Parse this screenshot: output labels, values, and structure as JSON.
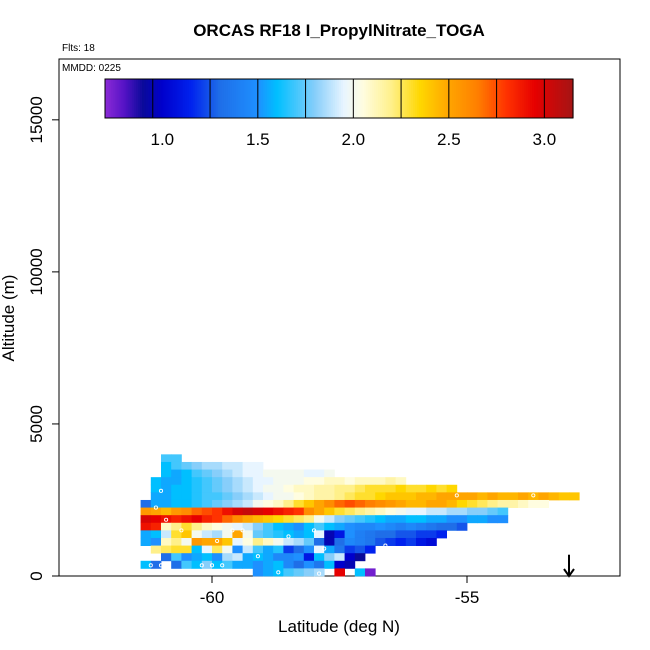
{
  "chart_data": {
    "type": "heatmap",
    "title": "ORCAS RF18 I_PropylNitrate_TOGA",
    "flights_note": "Flts: 18",
    "date_note": "MMDD: 0225",
    "xlabel": "Latitude (deg N)",
    "ylabel": "Altitude (m)",
    "xlim": [
      -63.0,
      -52.0
    ],
    "ylim": [
      0,
      17000
    ],
    "x_ticks": [
      -60,
      -55
    ],
    "y_ticks": [
      0,
      5000,
      10000,
      15000
    ],
    "colorbar": {
      "range": [
        0.7,
        3.15
      ],
      "ticks": [
        1.0,
        1.5,
        2.0,
        2.5,
        3.0
      ],
      "segment_boundaries": [
        0.7,
        0.95,
        1.25,
        1.5,
        1.75,
        2.0,
        2.25,
        2.5,
        2.75,
        3.0,
        3.15
      ],
      "stops": [
        {
          "value": 0.7,
          "color": "#8c2bd6"
        },
        {
          "value": 0.8,
          "color": "#5513c6"
        },
        {
          "value": 0.9,
          "color": "#0a0a9a"
        },
        {
          "value": 1.0,
          "color": "#0000cc"
        },
        {
          "value": 1.15,
          "color": "#0022ee"
        },
        {
          "value": 1.3,
          "color": "#1f6ee8"
        },
        {
          "value": 1.5,
          "color": "#1e90ff"
        },
        {
          "value": 1.6,
          "color": "#00bfff"
        },
        {
          "value": 1.8,
          "color": "#87cefa"
        },
        {
          "value": 1.95,
          "color": "#e8f5ff"
        },
        {
          "value": 2.05,
          "color": "#fffde0"
        },
        {
          "value": 2.2,
          "color": "#fff08a"
        },
        {
          "value": 2.35,
          "color": "#ffd700"
        },
        {
          "value": 2.5,
          "color": "#ffa500"
        },
        {
          "value": 2.65,
          "color": "#ff7f00"
        },
        {
          "value": 2.8,
          "color": "#ff3300"
        },
        {
          "value": 2.95,
          "color": "#e60000"
        },
        {
          "value": 3.15,
          "color": "#a51515"
        }
      ]
    },
    "cell_size": {
      "dlat": 0.2,
      "dalt": 250
    },
    "rows": [
      {
        "alt": 3875,
        "lat0": -61.0,
        "values": [
          1.7,
          1.7
        ]
      },
      {
        "alt": 3625,
        "lat0": -61.0,
        "values": [
          1.6,
          1.7,
          1.75,
          1.8,
          1.85,
          1.85,
          1.9,
          1.9,
          1.95,
          1.95
        ]
      },
      {
        "alt": 3375,
        "lat0": -61.0,
        "values": [
          1.6,
          1.55,
          1.6,
          1.7,
          1.75,
          1.8,
          1.85,
          1.9,
          1.95,
          1.95,
          2.0,
          2.0,
          2.0,
          2.0,
          1.95,
          1.95,
          2.0
        ]
      },
      {
        "alt": 3125,
        "lat0": -61.2,
        "values": [
          1.6,
          1.55,
          1.55,
          1.6,
          1.65,
          1.7,
          1.75,
          1.8,
          1.85,
          1.9,
          1.95,
          1.95,
          2.0,
          2.0,
          2.0,
          2.05,
          2.05,
          2.1,
          2.1,
          2.05,
          2.1,
          2.1,
          2.1,
          2.15,
          2.1
        ]
      },
      {
        "alt": 2875,
        "lat0": -61.2,
        "values": [
          1.6,
          1.55,
          1.6,
          1.6,
          1.65,
          1.7,
          1.75,
          1.8,
          1.85,
          1.9,
          1.95,
          2.0,
          2.0,
          2.05,
          2.1,
          2.1,
          2.15,
          2.15,
          2.2,
          2.2,
          2.25,
          2.3,
          2.3,
          2.3,
          2.35,
          2.3,
          2.3,
          2.35,
          2.3,
          2.35
        ]
      },
      {
        "alt": 2625,
        "lat0": -61.2,
        "values": [
          1.55,
          1.55,
          1.6,
          1.6,
          1.65,
          1.7,
          1.7,
          1.75,
          1.8,
          1.85,
          1.9,
          1.95,
          2.0,
          2.0,
          2.05,
          2.1,
          2.15,
          2.15,
          2.2,
          2.25,
          2.3,
          2.3,
          2.35,
          2.4,
          2.4,
          2.4,
          2.45,
          2.45,
          2.5,
          2.5,
          2.5,
          2.5,
          2.45,
          2.5,
          2.45,
          2.45,
          2.5,
          2.45,
          2.5,
          2.45,
          2.4,
          2.4
        ]
      },
      {
        "alt": 2375,
        "lat0": -61.4,
        "values": [
          1.3,
          1.55,
          1.55,
          1.6,
          1.6,
          1.65,
          1.7,
          1.75,
          1.8,
          1.85,
          1.9,
          2.0,
          2.05,
          2.1,
          2.2,
          2.3,
          2.4,
          2.5,
          2.6,
          2.7,
          2.75,
          2.7,
          2.65,
          2.6,
          2.55,
          2.5,
          2.45,
          2.45,
          2.5,
          2.5,
          2.45,
          2.35,
          2.3,
          2.25,
          2.2,
          2.15,
          2.15,
          2.1,
          2.05,
          2.05
        ]
      },
      {
        "alt": 2125,
        "lat0": -61.4,
        "values": [
          2.55,
          2.5,
          2.45,
          2.55,
          2.6,
          2.7,
          2.75,
          2.8,
          2.9,
          3.0,
          3.05,
          3.0,
          2.95,
          2.9,
          2.85,
          2.8,
          2.6,
          2.5,
          2.4,
          2.3,
          2.25,
          2.2,
          2.15,
          2.1,
          2.05,
          2.0,
          1.95,
          1.95,
          1.9,
          1.9,
          1.85,
          1.85,
          1.8,
          1.8,
          1.75,
          1.7
        ]
      },
      {
        "alt": 1875,
        "lat0": -61.4,
        "values": [
          3.0,
          2.95,
          2.9,
          2.85,
          2.9,
          2.95,
          2.85,
          2.8,
          2.7,
          2.6,
          2.5,
          2.45,
          2.4,
          2.35,
          2.3,
          2.25,
          2.2,
          2.0,
          1.9,
          1.8,
          1.75,
          1.7,
          1.65,
          1.6,
          1.55,
          1.55,
          1.6,
          1.6,
          1.55,
          1.55,
          1.5,
          1.5,
          1.55,
          1.55,
          1.5,
          1.5
        ]
      },
      {
        "alt": 1625,
        "lat0": -61.4,
        "values": [
          2.9,
          2.85,
          2.1,
          2.2,
          2.3,
          2.2,
          2.1,
          2.05,
          2.0,
          1.95,
          1.9,
          1.8,
          1.7,
          1.6,
          1.55,
          1.5,
          1.6,
          1.7,
          1.6,
          1.55,
          1.5,
          1.45,
          1.45,
          1.5,
          1.45,
          1.4,
          1.45,
          1.4,
          1.35,
          1.3,
          1.3,
          1.25
        ]
      },
      {
        "alt": 1375,
        "lat0": -61.4,
        "values": [
          1.55,
          1.6,
          1.9,
          2.3,
          2.4,
          2.0,
          1.9,
          1.85,
          2.0,
          2.5,
          2.0,
          1.75,
          1.7,
          1.65,
          1.6,
          1.55,
          1.6,
          1.95,
          0.95,
          1.1,
          1.5,
          1.4,
          1.35,
          1.3,
          1.3,
          1.25,
          1.25,
          1.2,
          1.2,
          1.15
        ]
      },
      {
        "alt": 1125,
        "lat0": -61.4,
        "values": [
          1.55,
          1.5,
          2.1,
          2.2,
          2.0,
          2.55,
          2.5,
          2.5,
          2.4,
          1.95,
          2.05,
          2.2,
          2.1,
          2.0,
          1.9,
          1.85,
          1.75,
          1.3,
          0.95,
          1.3,
          1.45,
          1.4,
          1.35,
          1.25,
          1.2,
          1.15,
          1.2,
          1.1,
          1.05
        ]
      },
      {
        "alt": 875,
        "lat0": -61.2,
        "values": [
          2.2,
          2.25,
          2.3,
          2.3,
          1.6,
          1.95,
          2.25,
          2.0,
          1.5,
          1.9,
          1.7,
          1.55,
          1.65,
          1.2,
          1.3,
          1.5,
          1.95,
          1.55,
          1.35,
          1.2,
          1.25,
          1.15
        ]
      },
      {
        "alt": 625,
        "lat0": -61.0,
        "values": [
          1.3,
          1.7,
          1.5,
          1.55,
          1.6,
          1.5,
          1.85,
          1.9,
          1.55,
          1.6,
          1.55,
          1.45,
          1.45,
          1.5,
          1.1,
          1.6,
          1.8,
          1.9,
          1.0,
          0.9
        ]
      },
      {
        "alt": 375,
        "lat0": -61.4,
        "values": [
          1.6,
          1.3,
          null,
          1.3,
          1.7,
          1.6,
          1.8,
          1.6,
          1.7,
          1.55,
          1.55,
          1.5,
          1.55,
          1.6,
          1.45,
          1.3,
          1.5,
          1.35,
          1.6,
          1.0,
          0.95
        ]
      },
      {
        "alt": 125,
        "lat0": -60.2,
        "values": [
          null,
          null,
          null,
          null,
          null,
          1.5,
          1.55,
          1.6,
          1.7,
          1.75,
          1.8,
          1.85,
          null,
          2.95,
          null,
          1.6,
          0.75
        ]
      }
    ],
    "sample_markers": [
      {
        "lat": -61.0,
        "alt": 2800
      },
      {
        "lat": -60.9,
        "alt": 1850
      },
      {
        "lat": -61.1,
        "alt": 2250
      },
      {
        "lat": -59.9,
        "alt": 1150
      },
      {
        "lat": -59.6,
        "alt": 1500
      },
      {
        "lat": -59.4,
        "alt": 1500
      },
      {
        "lat": -59.1,
        "alt": 650
      },
      {
        "lat": -58.5,
        "alt": 1300
      },
      {
        "lat": -58.0,
        "alt": 1500
      },
      {
        "lat": -60.6,
        "alt": 1500
      },
      {
        "lat": -61.0,
        "alt": 350
      },
      {
        "lat": -61.2,
        "alt": 350
      },
      {
        "lat": -60.2,
        "alt": 350
      },
      {
        "lat": -60.0,
        "alt": 350
      },
      {
        "lat": -59.8,
        "alt": 350
      },
      {
        "lat": -59.3,
        "alt": 150
      },
      {
        "lat": -58.7,
        "alt": 120
      },
      {
        "lat": -57.9,
        "alt": 80
      },
      {
        "lat": -57.8,
        "alt": 900
      },
      {
        "lat": -56.6,
        "alt": 1000
      },
      {
        "lat": -55.2,
        "alt": 2650
      },
      {
        "lat": -53.7,
        "alt": 2650
      }
    ],
    "aircraft_arrow": {
      "lat": -53.0,
      "alt_top": 700,
      "alt_bottom": 0
    }
  }
}
